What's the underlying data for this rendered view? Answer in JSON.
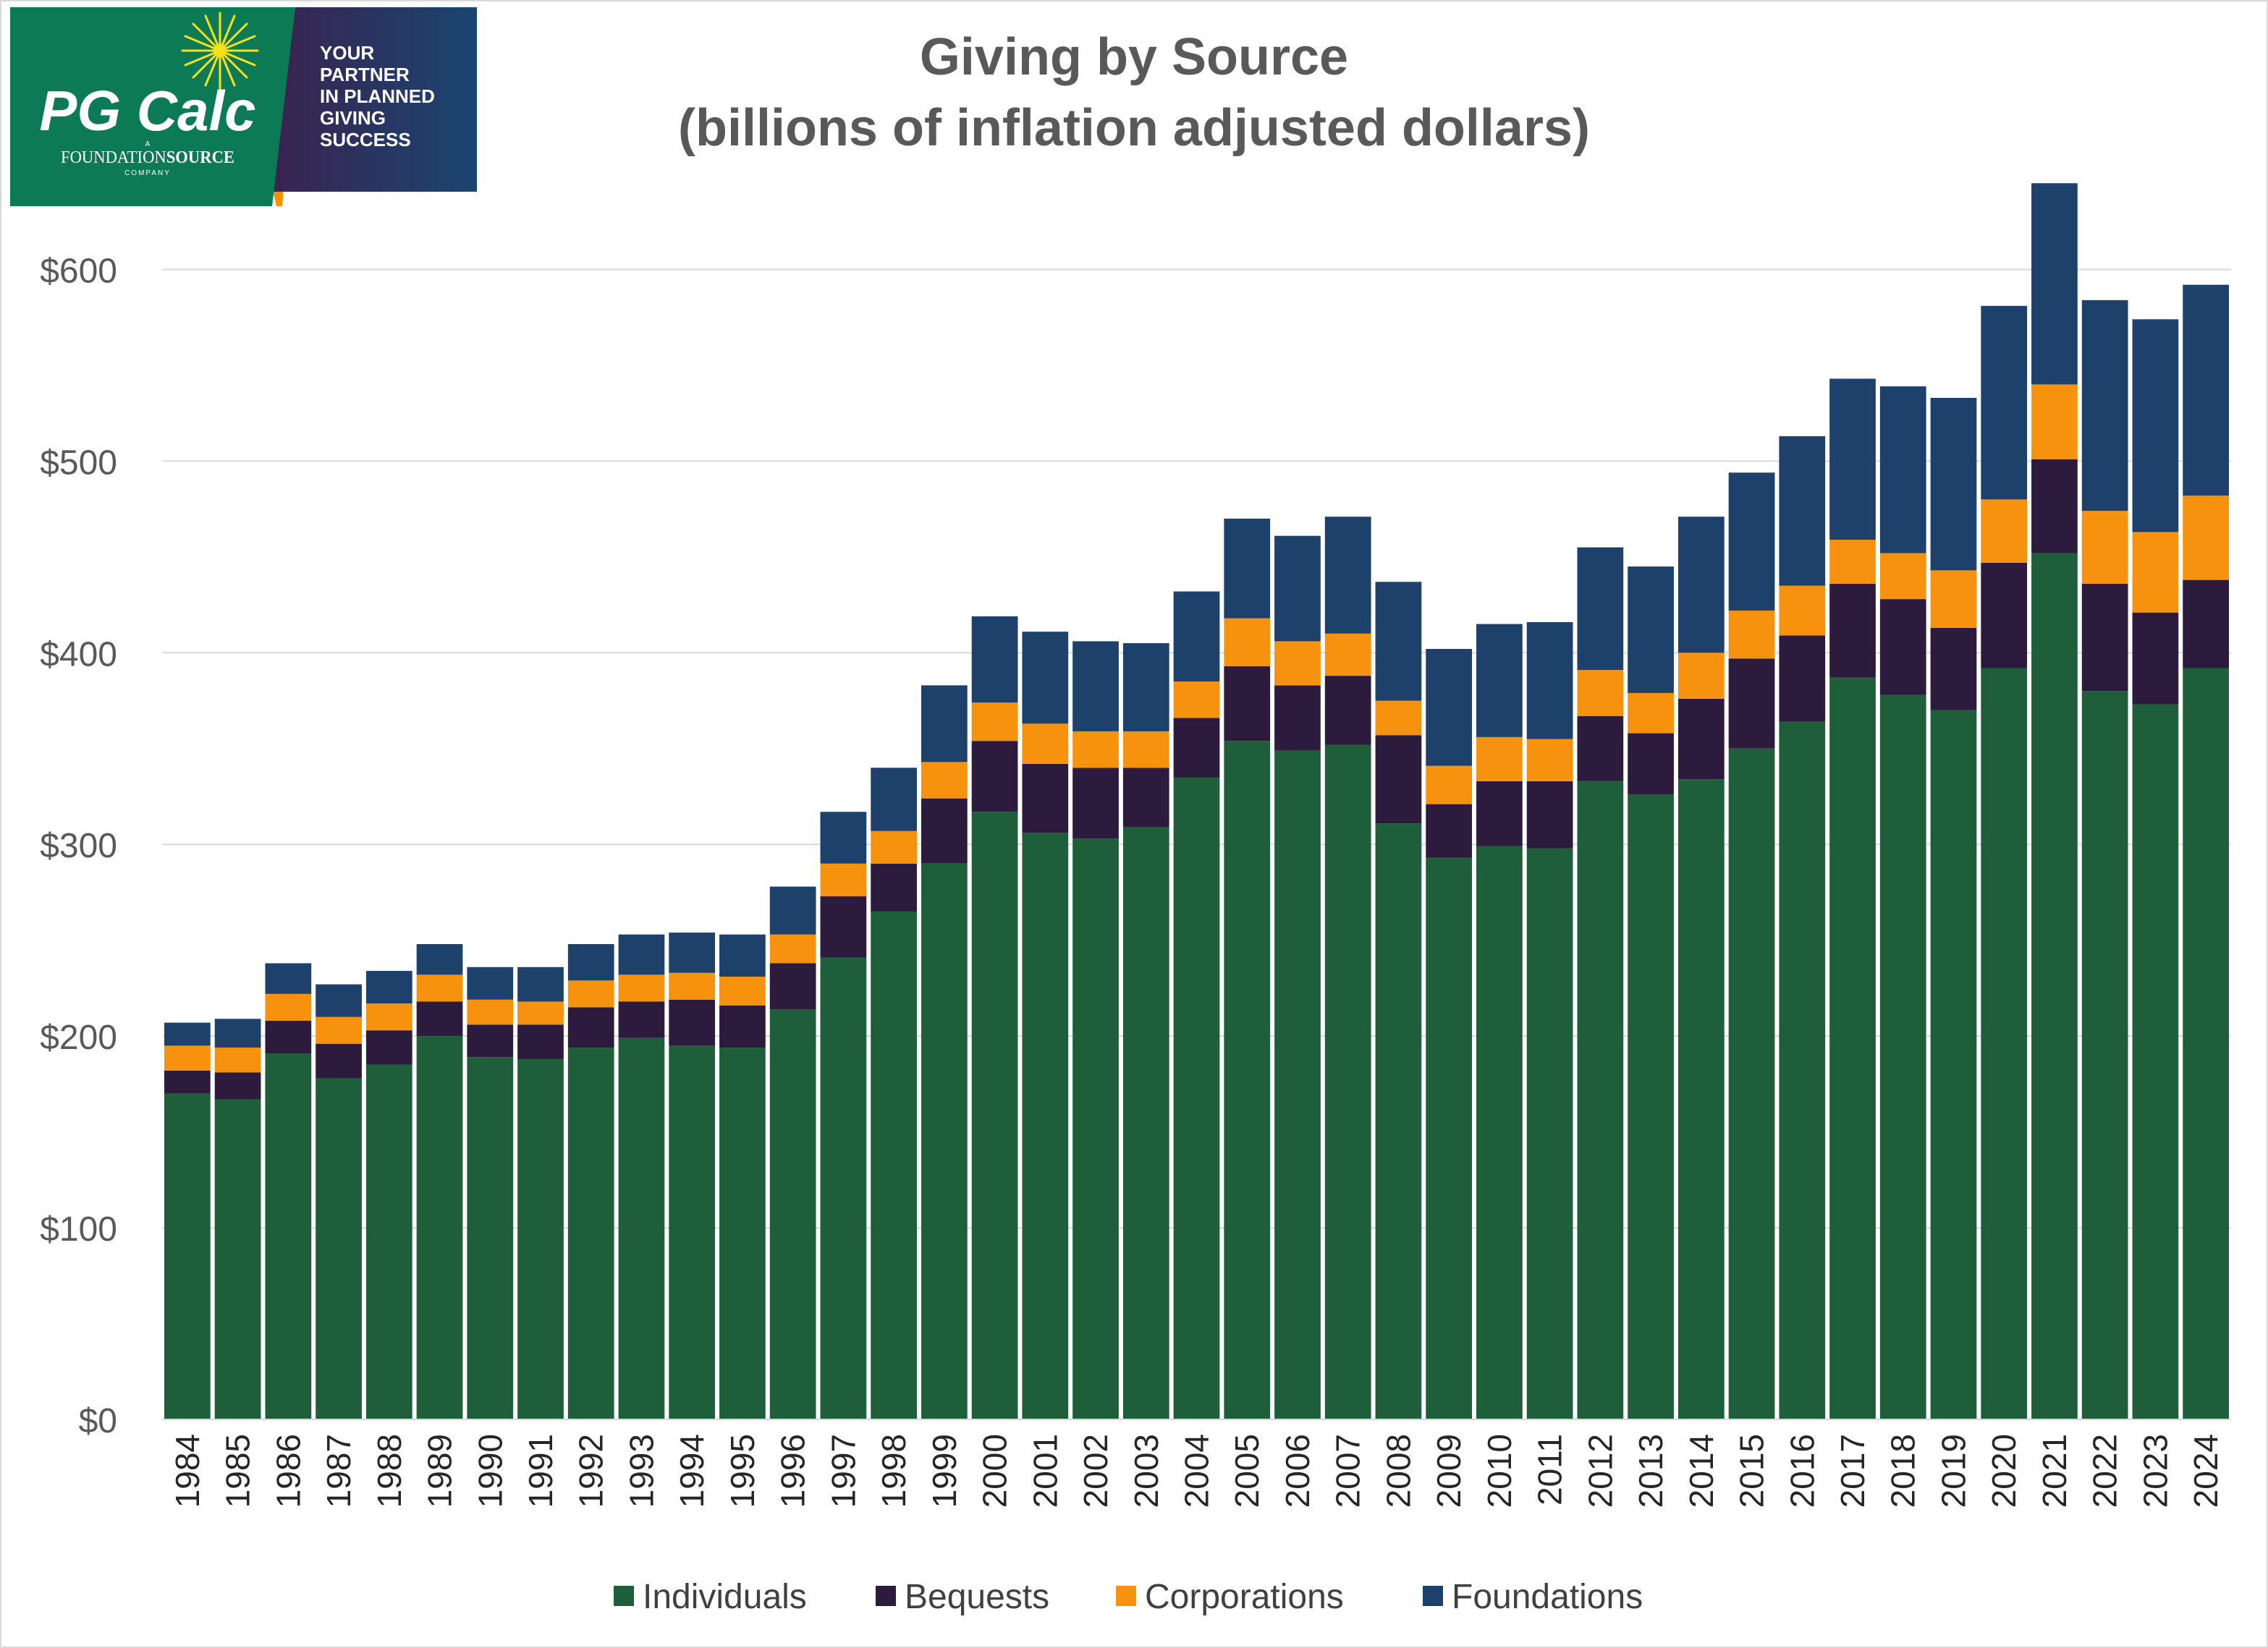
{
  "logo": {
    "brand": "PG Calc",
    "sub_a": "A",
    "sub_company_left": "FOUNDATION",
    "sub_company_right": "SOURCE",
    "sub_company_word": "COMPANY",
    "tagline": [
      "YOUR",
      "PARTNER",
      "IN PLANNED",
      "GIVING",
      "SUCCESS"
    ],
    "colors": {
      "green": "#0b7a55",
      "navy_start": "#3a2350",
      "navy_end": "#1a4570",
      "orange": "#f39200",
      "star": "#f7e21a"
    }
  },
  "chart_data": {
    "type": "bar",
    "stacked": true,
    "title": [
      "Giving by Source",
      "(billions of inflation adjusted dollars)"
    ],
    "xlabel": "",
    "ylabel": "",
    "ylim": [
      0,
      650
    ],
    "yticks": [
      0,
      100,
      200,
      300,
      400,
      500,
      600
    ],
    "ytick_labels": [
      "$0",
      "$100",
      "$200",
      "$300",
      "$400",
      "$500",
      "$600"
    ],
    "grid": true,
    "legend_position": "bottom-center",
    "categories": [
      "1984",
      "1985",
      "1986",
      "1987",
      "1988",
      "1989",
      "1990",
      "1991",
      "1992",
      "1993",
      "1994",
      "1995",
      "1996",
      "1997",
      "1998",
      "1999",
      "2000",
      "2001",
      "2002",
      "2003",
      "2004",
      "2005",
      "2006",
      "2007",
      "2008",
      "2009",
      "2010",
      "2011",
      "2012",
      "2013",
      "2014",
      "2015",
      "2016",
      "2017",
      "2018",
      "2019",
      "2020",
      "2021",
      "2022",
      "2023",
      "2024"
    ],
    "series": [
      {
        "name": "Individuals",
        "color": "#1e5e3a",
        "values": [
          170,
          167,
          191,
          178,
          185,
          200,
          189,
          188,
          194,
          199,
          195,
          194,
          214,
          241,
          265,
          290,
          317,
          306,
          303,
          309,
          335,
          354,
          349,
          352,
          311,
          293,
          299,
          298,
          333,
          326,
          334,
          350,
          364,
          387,
          378,
          370,
          392,
          452,
          380,
          373,
          392
        ]
      },
      {
        "name": "Bequests",
        "color": "#2d1b3e",
        "values": [
          12,
          14,
          17,
          18,
          18,
          18,
          17,
          18,
          21,
          19,
          24,
          22,
          24,
          32,
          25,
          34,
          37,
          36,
          37,
          31,
          31,
          39,
          34,
          36,
          46,
          28,
          34,
          35,
          34,
          32,
          42,
          47,
          45,
          49,
          50,
          43,
          55,
          49,
          56,
          48,
          46
        ]
      },
      {
        "name": "Corporations",
        "color": "#f7920f",
        "values": [
          13,
          13,
          14,
          14,
          14,
          14,
          13,
          12,
          14,
          14,
          14,
          15,
          15,
          17,
          17,
          19,
          20,
          21,
          19,
          19,
          19,
          25,
          23,
          22,
          18,
          20,
          23,
          22,
          24,
          21,
          24,
          25,
          26,
          23,
          24,
          30,
          33,
          39,
          38,
          42,
          44
        ]
      },
      {
        "name": "Foundations",
        "color": "#1d416b",
        "values": [
          12,
          15,
          16,
          17,
          17,
          16,
          17,
          18,
          19,
          21,
          21,
          22,
          25,
          27,
          33,
          40,
          45,
          48,
          47,
          46,
          47,
          52,
          55,
          61,
          62,
          61,
          59,
          61,
          64,
          66,
          71,
          72,
          78,
          84,
          87,
          90,
          101,
          105,
          110,
          111,
          110
        ]
      }
    ]
  }
}
